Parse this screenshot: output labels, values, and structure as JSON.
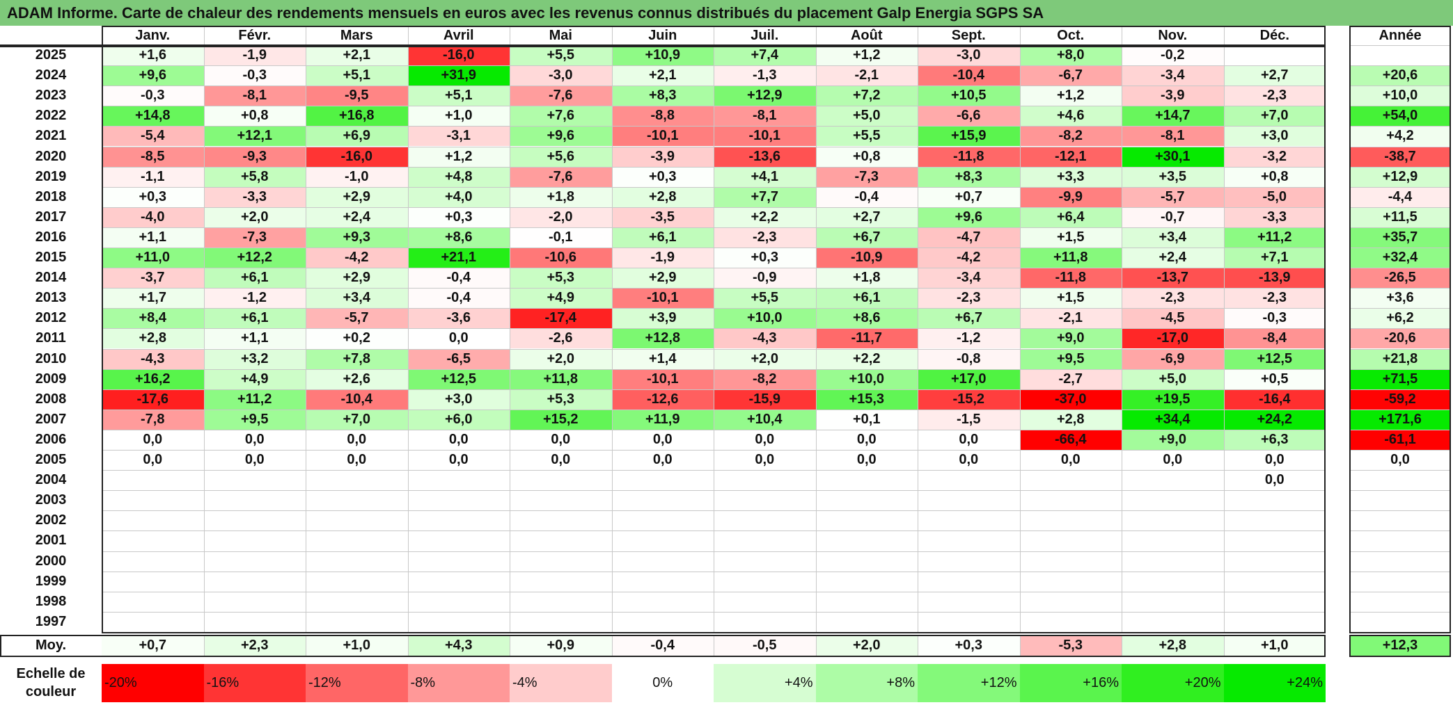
{
  "title": "ADAM Informe. Carte de chaleur des rendements mensuels en euros avec les revenus connus distribués du placement Galp Energia SGPS SA",
  "chart_data": {
    "type": "heatmap",
    "columns": [
      "Janv.",
      "Févr.",
      "Mars",
      "Avril",
      "Mai",
      "Juin",
      "Juil.",
      "Août",
      "Sept.",
      "Oct.",
      "Nov.",
      "Déc."
    ],
    "year_column_label": "Année",
    "rows": [
      {
        "year": "2025",
        "values": [
          "+1,6",
          "-1,9",
          "+2,1",
          "-16,0",
          "+5,5",
          "+10,9",
          "+7,4",
          "+1,2",
          "-3,0",
          "+8,0",
          "-0,2",
          ""
        ],
        "annual": ""
      },
      {
        "year": "2024",
        "values": [
          "+9,6",
          "-0,3",
          "+5,1",
          "+31,9",
          "-3,0",
          "+2,1",
          "-1,3",
          "-2,1",
          "-10,4",
          "-6,7",
          "-3,4",
          "+2,7"
        ],
        "annual": "+20,6"
      },
      {
        "year": "2023",
        "values": [
          "-0,3",
          "-8,1",
          "-9,5",
          "+5,1",
          "-7,6",
          "+8,3",
          "+12,9",
          "+7,2",
          "+10,5",
          "+1,2",
          "-3,9",
          "-2,3"
        ],
        "annual": "+10,0"
      },
      {
        "year": "2022",
        "values": [
          "+14,8",
          "+0,8",
          "+16,8",
          "+1,0",
          "+7,6",
          "-8,8",
          "-8,1",
          "+5,0",
          "-6,6",
          "+4,6",
          "+14,7",
          "+7,0"
        ],
        "annual": "+54,0"
      },
      {
        "year": "2021",
        "values": [
          "-5,4",
          "+12,1",
          "+6,9",
          "-3,1",
          "+9,6",
          "-10,1",
          "-10,1",
          "+5,5",
          "+15,9",
          "-8,2",
          "-8,1",
          "+3,0"
        ],
        "annual": "+4,2"
      },
      {
        "year": "2020",
        "values": [
          "-8,5",
          "-9,3",
          "-16,0",
          "+1,2",
          "+5,6",
          "-3,9",
          "-13,6",
          "+0,8",
          "-11,8",
          "-12,1",
          "+30,1",
          "-3,2"
        ],
        "annual": "-38,7"
      },
      {
        "year": "2019",
        "values": [
          "-1,1",
          "+5,8",
          "-1,0",
          "+4,8",
          "-7,6",
          "+0,3",
          "+4,1",
          "-7,3",
          "+8,3",
          "+3,3",
          "+3,5",
          "+0,8"
        ],
        "annual": "+12,9"
      },
      {
        "year": "2018",
        "values": [
          "+0,3",
          "-3,3",
          "+2,9",
          "+4,0",
          "+1,8",
          "+2,8",
          "+7,7",
          "-0,4",
          "+0,7",
          "-9,9",
          "-5,7",
          "-5,0"
        ],
        "annual": "-4,4"
      },
      {
        "year": "2017",
        "values": [
          "-4,0",
          "+2,0",
          "+2,4",
          "+0,3",
          "-2,0",
          "-3,5",
          "+2,2",
          "+2,7",
          "+9,6",
          "+6,4",
          "-0,7",
          "-3,3"
        ],
        "annual": "+11,5"
      },
      {
        "year": "2016",
        "values": [
          "+1,1",
          "-7,3",
          "+9,3",
          "+8,6",
          "-0,1",
          "+6,1",
          "-2,3",
          "+6,7",
          "-4,7",
          "+1,5",
          "+3,4",
          "+11,2"
        ],
        "annual": "+35,7"
      },
      {
        "year": "2015",
        "values": [
          "+11,0",
          "+12,2",
          "-4,2",
          "+21,1",
          "-10,6",
          "-1,9",
          "+0,3",
          "-10,9",
          "-4,2",
          "+11,8",
          "+2,4",
          "+7,1"
        ],
        "annual": "+32,4"
      },
      {
        "year": "2014",
        "values": [
          "-3,7",
          "+6,1",
          "+2,9",
          "-0,4",
          "+5,3",
          "+2,9",
          "-0,9",
          "+1,8",
          "-3,4",
          "-11,8",
          "-13,7",
          "-13,9"
        ],
        "annual": "-26,5"
      },
      {
        "year": "2013",
        "values": [
          "+1,7",
          "-1,2",
          "+3,4",
          "-0,4",
          "+4,9",
          "-10,1",
          "+5,5",
          "+6,1",
          "-2,3",
          "+1,5",
          "-2,3",
          "-2,3"
        ],
        "annual": "+3,6"
      },
      {
        "year": "2012",
        "values": [
          "+8,4",
          "+6,1",
          "-5,7",
          "-3,6",
          "-17,4",
          "+3,9",
          "+10,0",
          "+8,6",
          "+6,7",
          "-2,1",
          "-4,5",
          "-0,3"
        ],
        "annual": "+6,2"
      },
      {
        "year": "2011",
        "values": [
          "+2,8",
          "+1,1",
          "+0,2",
          "0,0",
          "-2,6",
          "+12,8",
          "-4,3",
          "-11,7",
          "-1,2",
          "+9,0",
          "-17,0",
          "-8,4"
        ],
        "annual": "-20,6"
      },
      {
        "year": "2010",
        "values": [
          "-4,3",
          "+3,2",
          "+7,8",
          "-6,5",
          "+2,0",
          "+1,4",
          "+2,0",
          "+2,2",
          "-0,8",
          "+9,5",
          "-6,9",
          "+12,5"
        ],
        "annual": "+21,8"
      },
      {
        "year": "2009",
        "values": [
          "+16,2",
          "+4,9",
          "+2,6",
          "+12,5",
          "+11,8",
          "-10,1",
          "-8,2",
          "+10,0",
          "+17,0",
          "-2,7",
          "+5,0",
          "+0,5"
        ],
        "annual": "+71,5"
      },
      {
        "year": "2008",
        "values": [
          "-17,6",
          "+11,2",
          "-10,4",
          "+3,0",
          "+5,3",
          "-12,6",
          "-15,9",
          "+15,3",
          "-15,2",
          "-37,0",
          "+19,5",
          "-16,4"
        ],
        "annual": "-59,2"
      },
      {
        "year": "2007",
        "values": [
          "-7,8",
          "+9,5",
          "+7,0",
          "+6,0",
          "+15,2",
          "+11,9",
          "+10,4",
          "+0,1",
          "-1,5",
          "+2,8",
          "+34,4",
          "+24,2"
        ],
        "annual": "+171,6"
      },
      {
        "year": "2006",
        "values": [
          "0,0",
          "0,0",
          "0,0",
          "0,0",
          "0,0",
          "0,0",
          "0,0",
          "0,0",
          "0,0",
          "-66,4",
          "+9,0",
          "+6,3"
        ],
        "annual": "-61,1"
      },
      {
        "year": "2005",
        "values": [
          "0,0",
          "0,0",
          "0,0",
          "0,0",
          "0,0",
          "0,0",
          "0,0",
          "0,0",
          "0,0",
          "0,0",
          "0,0",
          "0,0"
        ],
        "annual": "0,0"
      },
      {
        "year": "2004",
        "values": [
          "",
          "",
          "",
          "",
          "",
          "",
          "",
          "",
          "",
          "",
          "",
          "0,0"
        ],
        "annual": ""
      },
      {
        "year": "2003",
        "values": [
          "",
          "",
          "",
          "",
          "",
          "",
          "",
          "",
          "",
          "",
          "",
          ""
        ],
        "annual": ""
      },
      {
        "year": "2002",
        "values": [
          "",
          "",
          "",
          "",
          "",
          "",
          "",
          "",
          "",
          "",
          "",
          ""
        ],
        "annual": ""
      },
      {
        "year": "2001",
        "values": [
          "",
          "",
          "",
          "",
          "",
          "",
          "",
          "",
          "",
          "",
          "",
          ""
        ],
        "annual": ""
      },
      {
        "year": "2000",
        "values": [
          "",
          "",
          "",
          "",
          "",
          "",
          "",
          "",
          "",
          "",
          "",
          ""
        ],
        "annual": ""
      },
      {
        "year": "1999",
        "values": [
          "",
          "",
          "",
          "",
          "",
          "",
          "",
          "",
          "",
          "",
          "",
          ""
        ],
        "annual": ""
      },
      {
        "year": "1998",
        "values": [
          "",
          "",
          "",
          "",
          "",
          "",
          "",
          "",
          "",
          "",
          "",
          ""
        ],
        "annual": ""
      },
      {
        "year": "1997",
        "values": [
          "",
          "",
          "",
          "",
          "",
          "",
          "",
          "",
          "",
          "",
          "",
          ""
        ],
        "annual": ""
      }
    ],
    "average": {
      "label": "Moy.",
      "values": [
        "+0,7",
        "+2,3",
        "+1,0",
        "+4,3",
        "+0,9",
        "-0,4",
        "-0,5",
        "+2,0",
        "+0,3",
        "-5,3",
        "+2,8",
        "+1,0"
      ],
      "annual": "+12,3"
    },
    "color_scale": {
      "label_line1": "Echelle de",
      "label_line2": "couleur",
      "steps": [
        {
          "label": "-20%",
          "value": -20,
          "color": "#ff0000"
        },
        {
          "label": "-16%",
          "value": -16,
          "color": "#ff3434"
        },
        {
          "label": "-12%",
          "value": -12,
          "color": "#ff6666"
        },
        {
          "label": "-8%",
          "value": -8,
          "color": "#ff9898"
        },
        {
          "label": "-4%",
          "value": -4,
          "color": "#ffcccc"
        },
        {
          "label": "0%",
          "value": 0,
          "color": "#ffffff"
        },
        {
          "label": "+4%",
          "value": 4,
          "color": "#d6fdd2"
        },
        {
          "label": "+8%",
          "value": 8,
          "color": "#adfca6"
        },
        {
          "label": "+12%",
          "value": 12,
          "color": "#84f97a"
        },
        {
          "label": "+16%",
          "value": 16,
          "color": "#5af44d"
        },
        {
          "label": "+20%",
          "value": 20,
          "color": "#30ef20"
        },
        {
          "label": "+24%",
          "value": 24,
          "color": "#06ea00"
        }
      ]
    }
  }
}
